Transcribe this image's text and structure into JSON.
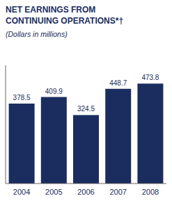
{
  "chart_data": {
    "type": "bar",
    "title": [
      "NET EARNINGS FROM",
      "CONTINUING OPERATIONS*†"
    ],
    "subtitle": "(Dollars in millions)",
    "categories": [
      "2004",
      "2005",
      "2006",
      "2007",
      "2008"
    ],
    "values": [
      378.5,
      409.9,
      324.5,
      448.7,
      473.8
    ],
    "color": "#1b2d5e",
    "ylim": [
      0,
      560
    ],
    "grid": false,
    "data_labels": true,
    "tick_labels": "x"
  }
}
